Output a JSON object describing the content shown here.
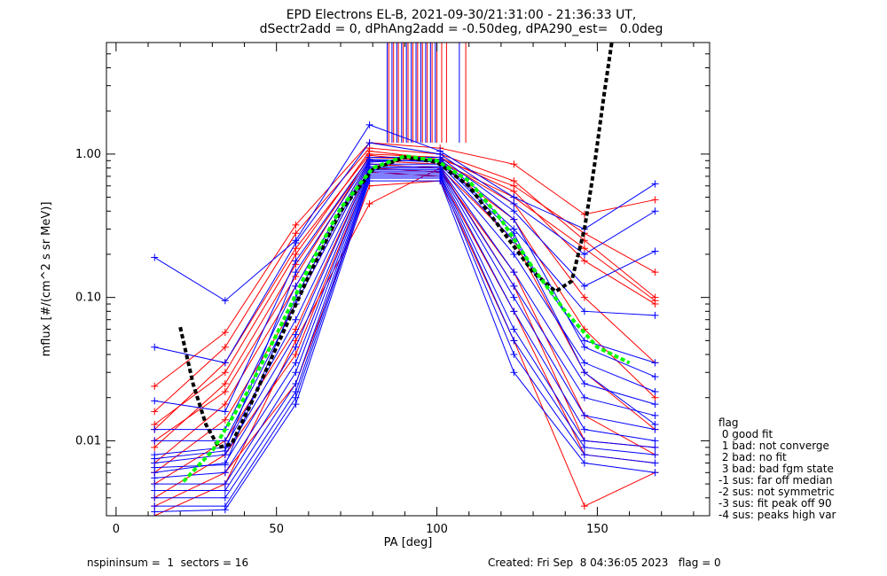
{
  "title": {
    "line1": "EPD Electrons EL-B, 2021-09-30/21:31:00 - 21:36:33 UT,",
    "line2": "dSectr2add = 0, dPhAng2add = -0.50deg, dPA290_est=   0.0deg"
  },
  "legend": {
    "heading": "flag",
    "items": [
      " 0 good fit",
      " 1 bad: not converge",
      " 2 bad: no fit",
      " 3 bad: bad fgm state",
      "-1 sus: far off median",
      "-2 sus: not symmetric",
      "-3 sus: fit peak off 90",
      "-4 sus: peaks high var"
    ]
  },
  "footer": {
    "left": "nspininsum =  1  sectors = 16",
    "right": "Created: Fri Sep  8 04:36:05 2023   flag = 0"
  },
  "chart_data": {
    "type": "line",
    "scale_y": "log",
    "xlabel": "PA [deg]",
    "ylabel": "mflux [#/(cm^2 s sr MeV)]",
    "xlim": [
      -3,
      185
    ],
    "ylim": [
      0.003,
      6.0
    ],
    "x_ticks": [
      0,
      50,
      100,
      150
    ],
    "y_ticks": [
      0.01,
      0.1,
      1.0
    ],
    "y_tick_labels": [
      "0.01",
      "0.10",
      "1.00"
    ],
    "pa_bins": [
      12,
      34,
      56,
      79,
      101,
      124,
      146,
      168
    ],
    "colors": {
      "red": "#ff0000",
      "blue": "#0000ff",
      "green": "#00ff00",
      "black": "#000000"
    },
    "series": [
      {
        "color": "red",
        "values": [
          0.024,
          0.057,
          0.32,
          1.2,
          1.1,
          0.85,
          0.38,
          0.48
        ]
      },
      {
        "color": "red",
        "values": [
          0.016,
          0.045,
          0.28,
          1.1,
          1.0,
          0.65,
          0.25,
          0.1
        ]
      },
      {
        "color": "red",
        "values": [
          0.012,
          0.035,
          0.22,
          1.0,
          0.95,
          0.55,
          0.18,
          0.09
        ]
      },
      {
        "color": "red",
        "values": [
          0.009,
          0.025,
          0.17,
          0.95,
          0.9,
          0.45,
          0.1,
          0.035
        ]
      },
      {
        "color": "red",
        "values": [
          0.007,
          0.018,
          0.12,
          0.9,
          0.85,
          0.35,
          0.06,
          0.02
        ]
      },
      {
        "color": "red",
        "values": [
          0.006,
          0.014,
          0.09,
          0.85,
          0.8,
          0.25,
          0.03,
          0.012
        ]
      },
      {
        "color": "red",
        "values": [
          0.005,
          0.01,
          0.06,
          0.8,
          0.75,
          0.15,
          0.015,
          0.008
        ]
      },
      {
        "color": "red",
        "values": [
          0.004,
          0.008,
          0.04,
          0.75,
          0.7,
          0.08,
          0.008,
          0.007
        ]
      },
      {
        "color": "red",
        "values": [
          0.0035,
          0.006,
          0.025,
          0.6,
          0.65,
          0.05,
          0.0035,
          0.006
        ]
      },
      {
        "color": "red",
        "values": [
          0.003,
          0.005,
          0.05,
          0.45,
          0.8,
          0.12,
          0.01,
          0.009
        ]
      },
      {
        "color": "red",
        "values": [
          0.013,
          0.03,
          0.2,
          1.05,
          0.92,
          0.6,
          0.28,
          0.15
        ]
      },
      {
        "color": "red",
        "values": [
          0.01,
          0.022,
          0.14,
          0.98,
          0.88,
          0.5,
          0.22,
          0.095
        ]
      },
      {
        "color": "blue",
        "values": [
          0.19,
          0.095,
          0.25,
          1.6,
          1.05,
          0.5,
          0.3,
          0.62
        ]
      },
      {
        "color": "blue",
        "values": [
          0.045,
          0.035,
          0.24,
          1.2,
          1.0,
          0.45,
          0.2,
          0.4
        ]
      },
      {
        "color": "blue",
        "values": [
          0.019,
          0.016,
          0.18,
          0.95,
          0.95,
          0.4,
          0.12,
          0.21
        ]
      },
      {
        "color": "blue",
        "values": [
          0.012,
          0.012,
          0.12,
          0.9,
          0.9,
          0.3,
          0.08,
          0.075
        ]
      },
      {
        "color": "blue",
        "values": [
          0.01,
          0.01,
          0.09,
          0.85,
          0.85,
          0.25,
          0.05,
          0.035
        ]
      },
      {
        "color": "blue",
        "values": [
          0.008,
          0.009,
          0.07,
          0.82,
          0.82,
          0.2,
          0.035,
          0.022
        ]
      },
      {
        "color": "blue",
        "values": [
          0.007,
          0.008,
          0.055,
          0.8,
          0.8,
          0.15,
          0.025,
          0.018
        ]
      },
      {
        "color": "blue",
        "values": [
          0.006,
          0.007,
          0.045,
          0.78,
          0.78,
          0.12,
          0.02,
          0.015
        ]
      },
      {
        "color": "blue",
        "values": [
          0.0055,
          0.006,
          0.035,
          0.76,
          0.76,
          0.1,
          0.015,
          0.012
        ]
      },
      {
        "color": "blue",
        "values": [
          0.005,
          0.005,
          0.03,
          0.74,
          0.74,
          0.08,
          0.012,
          0.01
        ]
      },
      {
        "color": "blue",
        "values": [
          0.0045,
          0.0045,
          0.025,
          0.72,
          0.72,
          0.06,
          0.01,
          0.009
        ]
      },
      {
        "color": "blue",
        "values": [
          0.004,
          0.004,
          0.022,
          0.7,
          0.7,
          0.05,
          0.009,
          0.008
        ]
      },
      {
        "color": "blue",
        "values": [
          0.0035,
          0.0035,
          0.02,
          0.68,
          0.68,
          0.04,
          0.008,
          0.007
        ]
      },
      {
        "color": "blue",
        "values": [
          0.0032,
          0.0033,
          0.018,
          0.65,
          0.65,
          0.03,
          0.007,
          0.006
        ]
      },
      {
        "color": "blue",
        "values": [
          0.0065,
          0.0068,
          0.1,
          0.88,
          0.92,
          0.35,
          0.045,
          0.028
        ]
      },
      {
        "color": "blue",
        "values": [
          0.0075,
          0.0085,
          0.15,
          0.92,
          0.88,
          0.28,
          0.03,
          0.013
        ]
      }
    ],
    "vertical_lines": {
      "red": [
        85,
        86.5,
        88,
        89.5,
        91,
        92.5,
        94,
        95.5,
        97,
        98.5,
        100,
        101.5,
        103,
        109
      ],
      "blue": [
        84.5,
        86,
        87.5,
        89,
        90.5,
        92,
        93.5,
        95,
        96.5,
        98,
        99.5,
        107
      ],
      "y_from": 1.2
    },
    "fit_green": {
      "x": [
        21,
        30,
        40,
        50,
        60,
        70,
        80,
        90,
        100,
        110,
        120,
        130,
        140,
        150,
        160
      ],
      "y": [
        0.0052,
        0.0085,
        0.02,
        0.055,
        0.16,
        0.42,
        0.8,
        0.97,
        0.9,
        0.65,
        0.35,
        0.16,
        0.08,
        0.045,
        0.035
      ]
    },
    "fit_black": {
      "x": [
        20,
        24,
        28,
        32,
        36,
        42,
        50,
        60,
        70,
        80,
        90,
        100,
        110,
        120,
        130,
        137,
        142,
        146,
        149,
        152,
        154.5
      ],
      "y": [
        0.062,
        0.025,
        0.013,
        0.009,
        0.0095,
        0.018,
        0.045,
        0.14,
        0.4,
        0.78,
        0.95,
        0.88,
        0.6,
        0.3,
        0.15,
        0.11,
        0.13,
        0.3,
        0.8,
        2.5,
        6.0
      ]
    }
  }
}
